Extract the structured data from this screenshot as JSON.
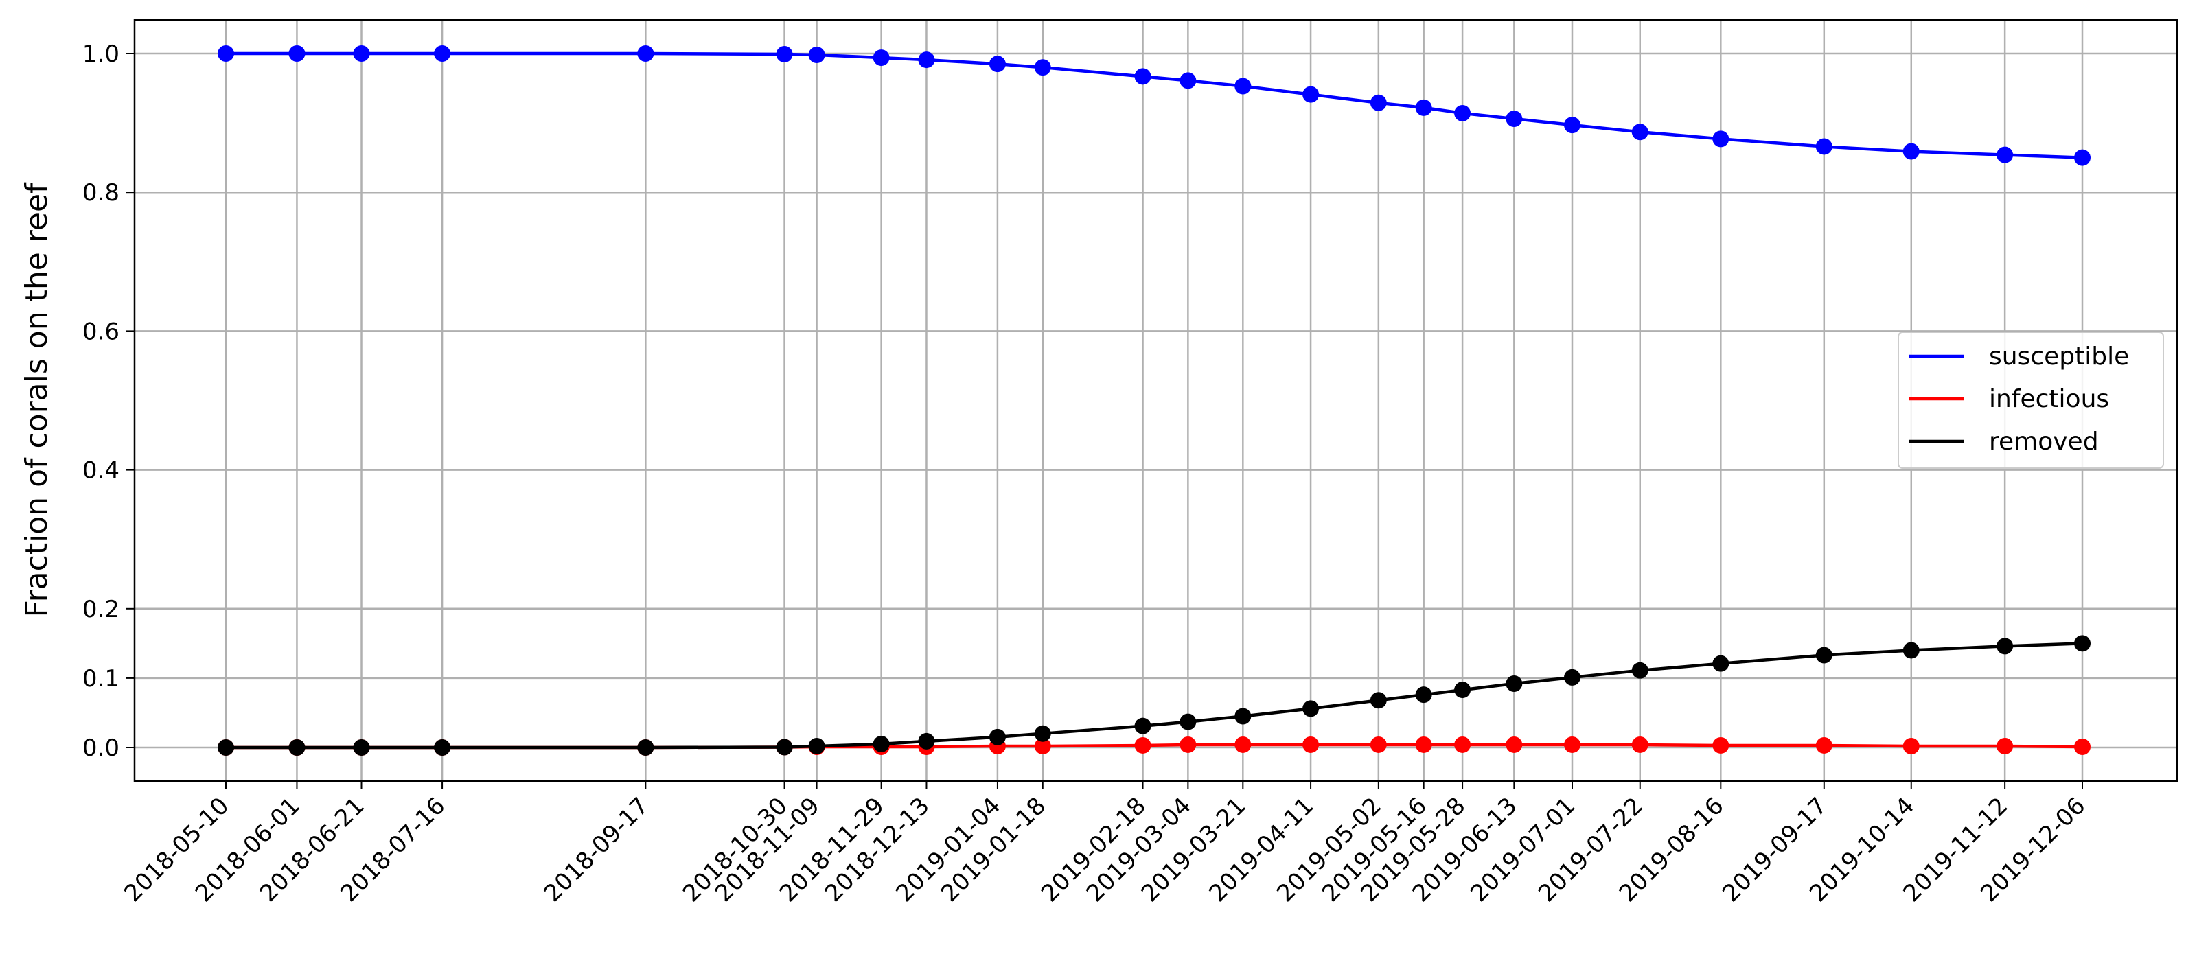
{
  "chart_data": {
    "type": "line",
    "title": "",
    "xlabel": "",
    "ylabel": "Fraction of corals on the reef",
    "x": [
      "2018-05-10",
      "2018-06-01",
      "2018-06-21",
      "2018-07-16",
      "2018-09-17",
      "2018-10-30",
      "2018-11-09",
      "2018-11-29",
      "2018-12-13",
      "2019-01-04",
      "2019-01-18",
      "2019-02-18",
      "2019-03-04",
      "2019-03-21",
      "2019-04-11",
      "2019-05-02",
      "2019-05-16",
      "2019-05-28",
      "2019-06-13",
      "2019-07-01",
      "2019-07-22",
      "2019-08-16",
      "2019-09-17",
      "2019-10-14",
      "2019-11-12",
      "2019-12-06"
    ],
    "yticks": [
      0.0,
      0.1,
      0.2,
      0.4,
      0.6,
      0.8,
      1.0
    ],
    "ytick_labels": [
      "0.0",
      "0.1",
      "0.2",
      "0.4",
      "0.6",
      "0.8",
      "1.0"
    ],
    "ylim": [
      -0.05,
      1.05
    ],
    "grid": true,
    "legend_position": "center-right",
    "series": [
      {
        "name": "susceptible",
        "color": "#0000ff",
        "values": [
          1.0,
          1.0,
          1.0,
          1.0,
          1.0,
          0.999,
          0.998,
          0.994,
          0.991,
          0.985,
          0.98,
          0.967,
          0.961,
          0.953,
          0.941,
          0.929,
          0.922,
          0.914,
          0.906,
          0.897,
          0.887,
          0.877,
          0.866,
          0.859,
          0.854,
          0.85
        ]
      },
      {
        "name": "infectious",
        "color": "#ff0000",
        "values": [
          0.0,
          0.0,
          0.0,
          0.0,
          0.0,
          0.0005,
          0.001,
          0.001,
          0.001,
          0.002,
          0.002,
          0.003,
          0.004,
          0.004,
          0.004,
          0.004,
          0.004,
          0.004,
          0.004,
          0.004,
          0.004,
          0.003,
          0.003,
          0.002,
          0.002,
          0.001
        ]
      },
      {
        "name": "removed",
        "color": "#000000",
        "values": [
          0.0,
          0.0,
          0.0,
          0.0,
          0.0,
          0.0005,
          0.002,
          0.005,
          0.009,
          0.015,
          0.02,
          0.031,
          0.037,
          0.045,
          0.056,
          0.068,
          0.076,
          0.083,
          0.092,
          0.101,
          0.111,
          0.121,
          0.133,
          0.14,
          0.146,
          0.15
        ]
      }
    ]
  }
}
